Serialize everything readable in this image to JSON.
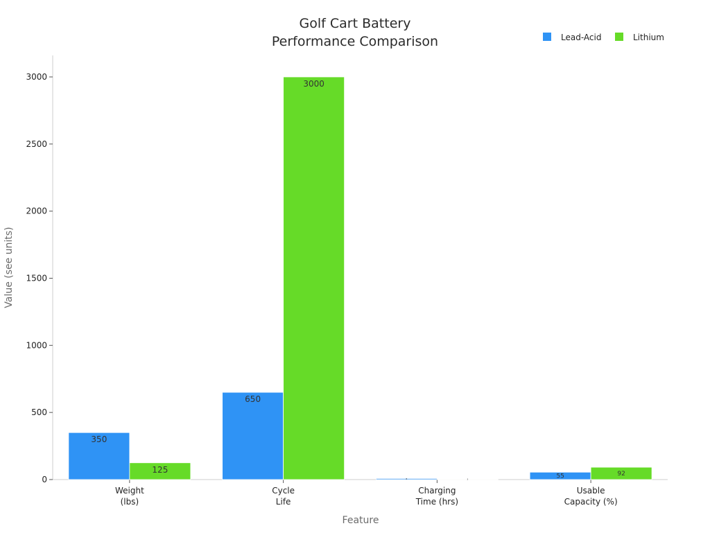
{
  "chart_data": {
    "type": "bar",
    "title": [
      "Golf Cart Battery",
      "Performance Comparison"
    ],
    "xlabel": "Feature",
    "ylabel": "Value (see units)",
    "categories": [
      [
        "Weight",
        "(lbs)"
      ],
      [
        "Cycle",
        "Life"
      ],
      [
        "Charging",
        "Time (hrs)"
      ],
      [
        "Usable",
        "Capacity (%)"
      ]
    ],
    "series": [
      {
        "name": "Lead-Acid",
        "color": "#2f93f5",
        "values": [
          350,
          650,
          8,
          55
        ],
        "labels": [
          "350",
          "650",
          "8",
          "55"
        ]
      },
      {
        "name": "Lithium",
        "color": "#66db28",
        "values": [
          125,
          3000,
          3,
          92
        ],
        "labels": [
          "125",
          "3000",
          "3",
          "92"
        ]
      }
    ],
    "ylim": [
      0,
      3160
    ],
    "yticks": [
      0,
      500,
      1000,
      1500,
      2000,
      2500,
      3000
    ],
    "grid": false,
    "legend_position": "top-right"
  }
}
